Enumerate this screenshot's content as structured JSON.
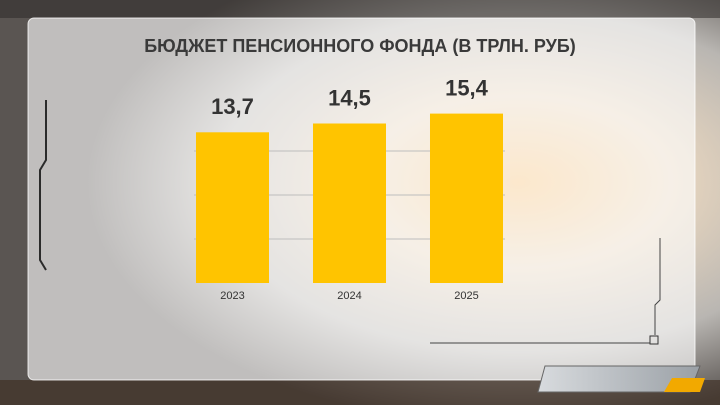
{
  "chart_data": {
    "type": "bar",
    "title": "БЮДЖЕТ ПЕНСИОННОГО ФОНДА (В ТРЛН. РУБ)",
    "categories": [
      "2023",
      "2024",
      "2025"
    ],
    "values": [
      13.7,
      14.5,
      15.4
    ],
    "value_labels": [
      "13,7",
      "14,5",
      "15,4"
    ],
    "color": "#ffc400",
    "ylim": [
      0,
      18
    ],
    "yticks": [
      4,
      8,
      12
    ],
    "grid": true
  }
}
